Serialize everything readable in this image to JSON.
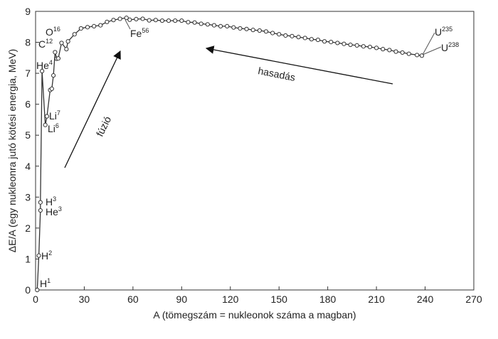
{
  "chart_data": {
    "type": "line",
    "title": "",
    "xlabel": "A (tömegszám = nukleonok száma a magban)",
    "ylabel": "ΔE/A (egy nukleonra jutó kötési energia, MeV)",
    "xlim": [
      0,
      270
    ],
    "ylim": [
      0,
      9
    ],
    "xticks": [
      0,
      30,
      60,
      90,
      120,
      150,
      180,
      210,
      240,
      270
    ],
    "yticks": [
      0,
      1,
      2,
      3,
      4,
      5,
      6,
      7,
      8,
      9
    ],
    "grid": false,
    "series": [
      {
        "points": [
          [
            1,
            0.0
          ],
          [
            2,
            1.11
          ],
          [
            3,
            2.57
          ],
          [
            3,
            2.83
          ],
          [
            4,
            7.07
          ],
          [
            6,
            5.33
          ],
          [
            7,
            5.61
          ],
          [
            9,
            6.46
          ],
          [
            10,
            6.5
          ],
          [
            11,
            6.93
          ],
          [
            12,
            7.68
          ],
          [
            13,
            7.47
          ],
          [
            14,
            7.48
          ],
          [
            16,
            7.98
          ],
          [
            19,
            7.78
          ],
          [
            20,
            8.03
          ],
          [
            24,
            8.26
          ],
          [
            28,
            8.45
          ],
          [
            32,
            8.49
          ],
          [
            36,
            8.52
          ],
          [
            40,
            8.55
          ],
          [
            44,
            8.66
          ],
          [
            48,
            8.72
          ],
          [
            52,
            8.76
          ],
          [
            56,
            8.79
          ],
          [
            58,
            8.73
          ],
          [
            62,
            8.75
          ],
          [
            66,
            8.76
          ],
          [
            70,
            8.71
          ],
          [
            74,
            8.72
          ],
          [
            78,
            8.7
          ],
          [
            82,
            8.7
          ],
          [
            86,
            8.7
          ],
          [
            90,
            8.7
          ],
          [
            94,
            8.65
          ],
          [
            98,
            8.64
          ],
          [
            102,
            8.6
          ],
          [
            106,
            8.58
          ],
          [
            110,
            8.55
          ],
          [
            114,
            8.52
          ],
          [
            118,
            8.52
          ],
          [
            122,
            8.48
          ],
          [
            126,
            8.45
          ],
          [
            130,
            8.43
          ],
          [
            134,
            8.4
          ],
          [
            138,
            8.38
          ],
          [
            142,
            8.35
          ],
          [
            146,
            8.3
          ],
          [
            150,
            8.26
          ],
          [
            154,
            8.22
          ],
          [
            158,
            8.2
          ],
          [
            162,
            8.17
          ],
          [
            166,
            8.14
          ],
          [
            170,
            8.1
          ],
          [
            174,
            8.08
          ],
          [
            178,
            8.03
          ],
          [
            182,
            8.01
          ],
          [
            186,
            7.98
          ],
          [
            190,
            7.95
          ],
          [
            194,
            7.92
          ],
          [
            198,
            7.9
          ],
          [
            202,
            7.87
          ],
          [
            206,
            7.85
          ],
          [
            210,
            7.82
          ],
          [
            214,
            7.78
          ],
          [
            218,
            7.75
          ],
          [
            222,
            7.7
          ],
          [
            226,
            7.67
          ],
          [
            230,
            7.63
          ],
          [
            235,
            7.59
          ],
          [
            238,
            7.57
          ]
        ]
      }
    ],
    "annotations": [
      {
        "element": "H",
        "mass": "1"
      },
      {
        "element": "H",
        "mass": "2"
      },
      {
        "element": "H",
        "mass": "3"
      },
      {
        "element": "He",
        "mass": "3"
      },
      {
        "element": "He",
        "mass": "4"
      },
      {
        "element": "Li",
        "mass": "6"
      },
      {
        "element": "Li",
        "mass": "7"
      },
      {
        "element": "C",
        "mass": "12"
      },
      {
        "element": "O",
        "mass": "16"
      },
      {
        "element": "Fe",
        "mass": "56"
      },
      {
        "element": "U",
        "mass": "235"
      },
      {
        "element": "U",
        "mass": "238"
      }
    ],
    "arrows": [
      {
        "label": "fúzió"
      },
      {
        "label": "hasadás"
      }
    ]
  }
}
